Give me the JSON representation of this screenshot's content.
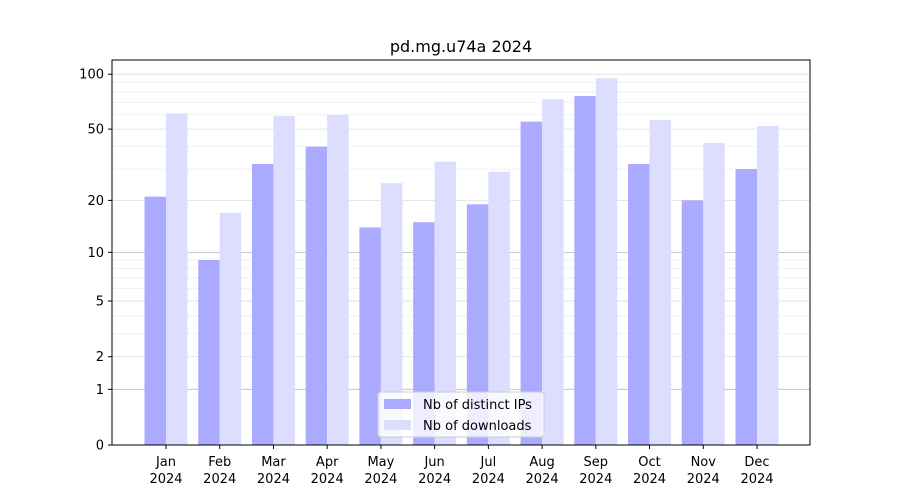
{
  "chart_data": {
    "type": "bar",
    "title": "pd.mg.u74a 2024",
    "xlabel": "",
    "ylabel": "",
    "yscale": "log(1+y)",
    "ylim": [
      0,
      120
    ],
    "yticks": [
      0,
      1,
      2,
      5,
      10,
      20,
      50,
      100
    ],
    "grid": true,
    "legend_position": "bottom-center",
    "categories": [
      "Jan\n2024",
      "Feb\n2024",
      "Mar\n2024",
      "Apr\n2024",
      "May\n2024",
      "Jun\n2024",
      "Jul\n2024",
      "Aug\n2024",
      "Sep\n2024",
      "Oct\n2024",
      "Nov\n2024",
      "Dec\n2024"
    ],
    "series": [
      {
        "name": "Nb of distinct IPs",
        "color": "#aaaaff",
        "values": [
          21,
          9,
          32,
          40,
          14,
          15,
          19,
          55,
          76,
          32,
          20,
          30
        ]
      },
      {
        "name": "Nb of downloads",
        "color": "#ddddff",
        "values": [
          61,
          17,
          59,
          60,
          25,
          33,
          29,
          73,
          95,
          56,
          42,
          52
        ]
      }
    ]
  }
}
